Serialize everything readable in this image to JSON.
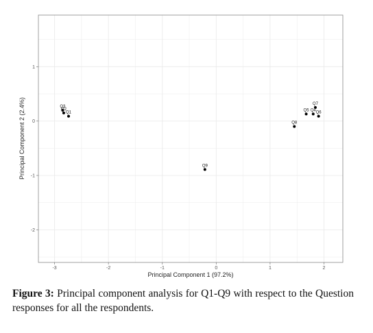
{
  "caption": {
    "label": "Figure 3:",
    "text": " Principal component analysis for Q1-Q9 with respect to the Question responses for all the respondents."
  },
  "chart_data": {
    "type": "scatter",
    "xlabel": "Principal Component 1 (97.2%)",
    "ylabel": "Principal Component 2 (2.4%)",
    "xlim": [
      -3.3,
      2.35
    ],
    "ylim": [
      -2.6,
      1.95
    ],
    "xticks": [
      -3,
      -2,
      -1,
      0,
      1,
      2
    ],
    "xtick_labels": [
      "-3",
      "-2",
      "-1",
      "0",
      "1",
      "2"
    ],
    "yticks": [
      -2,
      -1,
      0,
      1
    ],
    "ytick_labels": [
      "-2",
      "-1",
      "0",
      "1"
    ],
    "grid": true,
    "points": [
      {
        "label": "Q3",
        "x": -2.85,
        "y": 0.2
      },
      {
        "label": "Q2",
        "x": -2.83,
        "y": 0.15
      },
      {
        "label": "Q1",
        "x": -2.74,
        "y": 0.09
      },
      {
        "label": "Q9",
        "x": -0.21,
        "y": -0.89
      },
      {
        "label": "Q8",
        "x": 1.45,
        "y": -0.1
      },
      {
        "label": "Q5",
        "x": 1.67,
        "y": 0.13
      },
      {
        "label": "Q4",
        "x": 1.8,
        "y": 0.13
      },
      {
        "label": "Q7",
        "x": 1.84,
        "y": 0.25
      },
      {
        "label": "Q6",
        "x": 1.9,
        "y": 0.09
      }
    ],
    "colors": {
      "point": "#000000",
      "panel_border": "#888888",
      "grid": "#ebebeb"
    }
  }
}
